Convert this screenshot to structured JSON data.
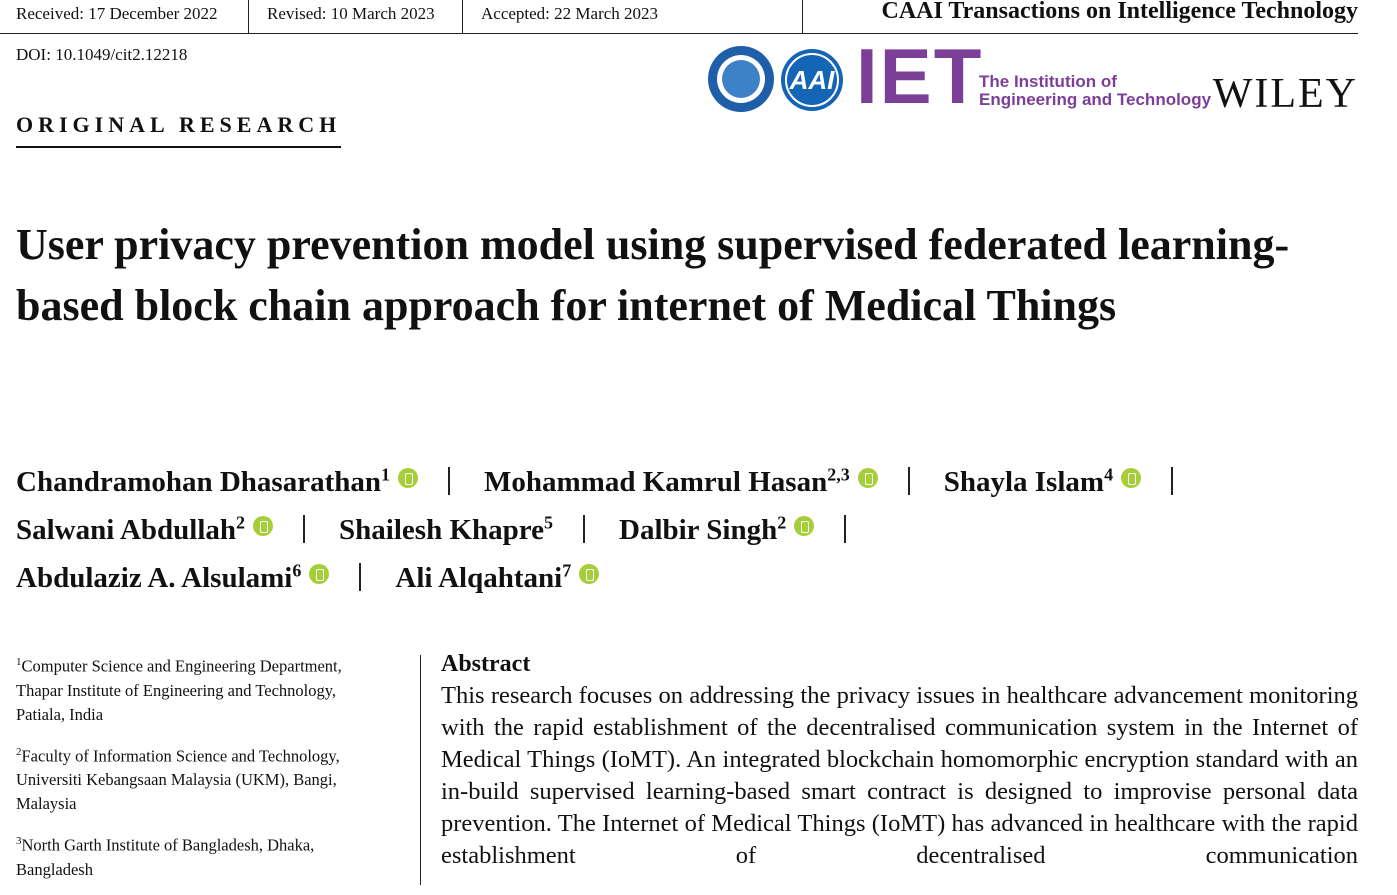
{
  "header": {
    "received": "Received: 17 December 2022",
    "revised": "Revised: 10 March 2023",
    "accepted": "Accepted: 22 March 2023",
    "journal": "CAAI Transactions on Intelligence Technology",
    "doi": "DOI: 10.1049/cit2.12218"
  },
  "logos": {
    "aai": "AAI",
    "iet": "IET",
    "iet_line1": "The Institution of",
    "iet_line2": "Engineering and Technology",
    "wiley": "WILEY"
  },
  "section": "ORIGINAL RESEARCH",
  "title": "User privacy prevention model using supervised federated learning-based block chain approach for internet of Medical Things",
  "authors": [
    {
      "name": "Chandramohan Dhasarathan",
      "sup": "1",
      "orcid": true
    },
    {
      "name": "Mohammad Kamrul Hasan",
      "sup": "2,3",
      "orcid": true
    },
    {
      "name": "Shayla Islam",
      "sup": "4",
      "orcid": true
    },
    {
      "name": "Salwani Abdullah",
      "sup": "2",
      "orcid": true
    },
    {
      "name": "Shailesh Khapre",
      "sup": "5",
      "orcid": false
    },
    {
      "name": "Dalbir Singh",
      "sup": "2",
      "orcid": true
    },
    {
      "name": "Abdulaziz A. Alsulami",
      "sup": "6",
      "orcid": true
    },
    {
      "name": "Ali Alqahtani",
      "sup": "7",
      "orcid": true
    }
  ],
  "affiliations": [
    {
      "sup": "1",
      "lines": [
        "Computer Science and Engineering Department,",
        "Thapar Institute of Engineering and Technology,",
        "Patiala, India"
      ]
    },
    {
      "sup": "2",
      "lines": [
        "Faculty of Information Science and Technology,",
        "Universiti Kebangsaan Malaysia (UKM), Bangi,",
        "Malaysia"
      ]
    },
    {
      "sup": "3",
      "lines": [
        "North Garth Institute of Bangladesh, Dhaka,",
        "Bangladesh"
      ]
    }
  ],
  "abstract": {
    "heading": "Abstract",
    "text": "This research focuses on addressing the privacy issues in healthcare advancement monitoring with the rapid establishment of the decentralised communication system in the Internet of Medical Things (IoMT). An integrated blockchain homomorphic encryption standard with an in-build supervised learning-based smart contract is designed to improvise personal data prevention. The Internet of Medical Things (IoMT) has advanced in healthcare with the rapid establishment of decentralised communication"
  }
}
